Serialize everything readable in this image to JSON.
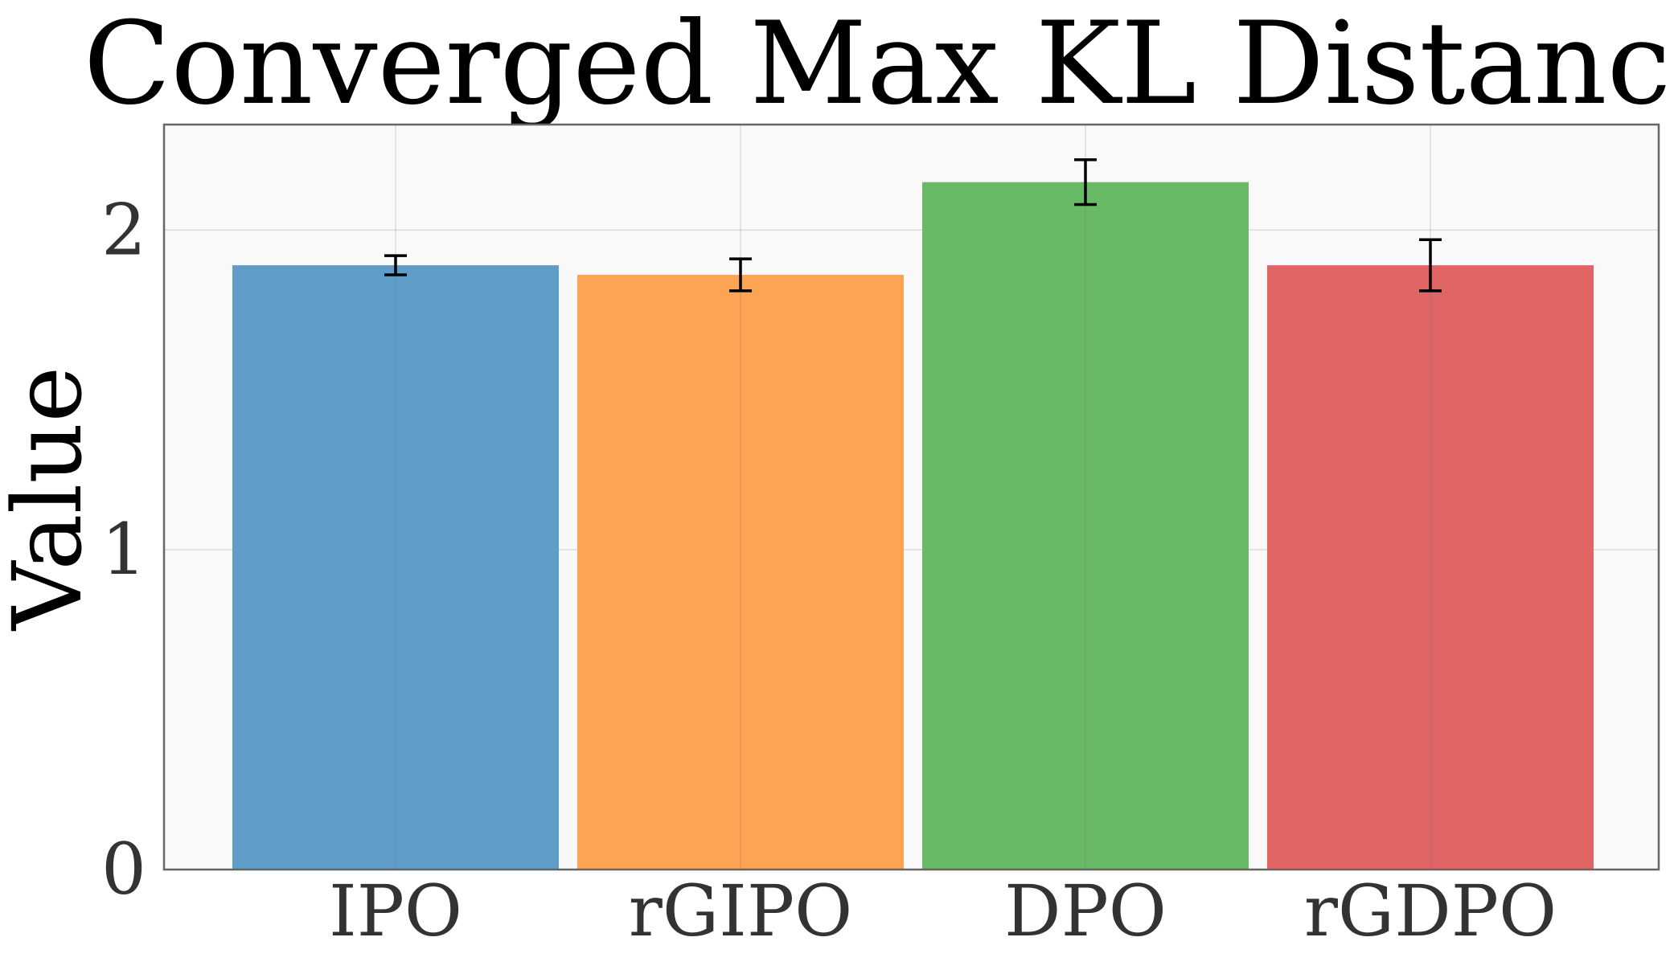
{
  "chart_data": {
    "type": "bar",
    "title": "Converged Max KL Distance",
    "xlabel": "",
    "ylabel": "Value",
    "categories": [
      "IPO",
      "rGIPO",
      "DPO",
      "rGDPO"
    ],
    "values": [
      1.89,
      1.86,
      2.15,
      1.89
    ],
    "errors": [
      0.03,
      0.05,
      0.07,
      0.08
    ],
    "colors": [
      "#5f9dc8",
      "#fca453",
      "#68ba67",
      "#e06666"
    ],
    "ylim": [
      0,
      2.33
    ],
    "yticks": [
      0,
      1,
      2
    ],
    "ytick_labels": [
      "0",
      "1",
      "2"
    ],
    "grid": true,
    "legend": "none"
  }
}
